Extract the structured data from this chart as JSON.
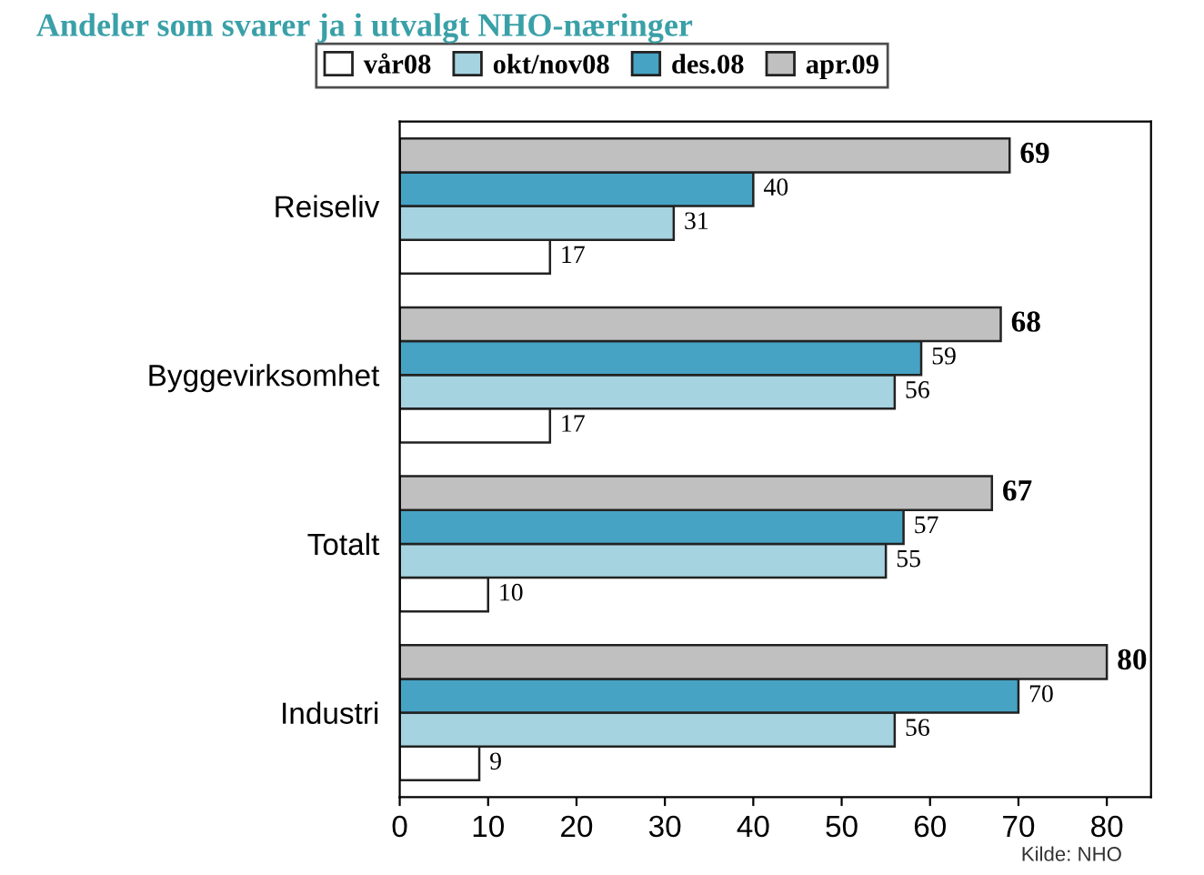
{
  "chart_data": {
    "type": "bar",
    "orientation": "horizontal",
    "title": "Andeler som svarer ja i utvalgt NHO-næringer",
    "categories": [
      "Reiseliv",
      "Byggevirksomhet",
      "Totalt",
      "Industri"
    ],
    "series": [
      {
        "name": "vår08",
        "color": "#ffffff",
        "values": [
          17,
          17,
          10,
          9
        ]
      },
      {
        "name": "okt/nov08",
        "color": "#a6d3e0",
        "values": [
          31,
          56,
          55,
          56
        ]
      },
      {
        "name": "des.08",
        "color": "#46a3c4",
        "values": [
          40,
          59,
          57,
          70
        ]
      },
      {
        "name": "apr.09",
        "color": "#c0c0c0",
        "values": [
          69,
          68,
          67,
          80
        ]
      }
    ],
    "xlim": [
      0,
      85
    ],
    "xticks": [
      0,
      10,
      20,
      30,
      40,
      50,
      60,
      70,
      80
    ],
    "data_labels": true,
    "legend": "top",
    "grid": false,
    "annotations": [
      "Kilde: NHO"
    ]
  }
}
